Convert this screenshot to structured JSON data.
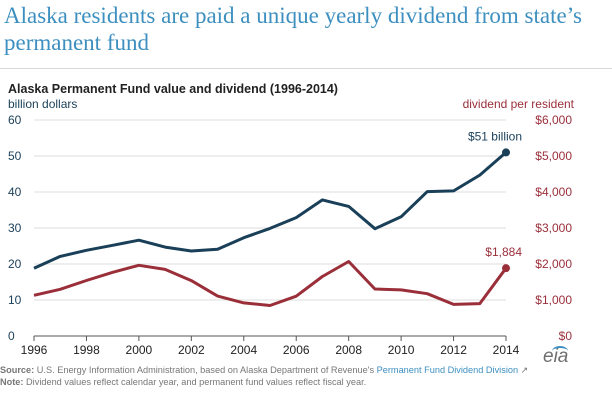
{
  "headline": "Alaska residents are paid a unique yearly dividend from state’s permanent fund",
  "chart_data": {
    "type": "line",
    "title": "Alaska Permanent Fund value and dividend (1996-2014)",
    "ylabel_left": "billion dollars",
    "ylabel_right": "dividend  per resident",
    "x": [
      1996,
      1997,
      1998,
      1999,
      2000,
      2001,
      2002,
      2003,
      2004,
      2005,
      2006,
      2007,
      2008,
      2009,
      2010,
      2011,
      2012,
      2013,
      2014
    ],
    "xlim": [
      1996,
      2014
    ],
    "xticks": [
      "1996",
      "1998",
      "2000",
      "2002",
      "2004",
      "2006",
      "2008",
      "2010",
      "2012",
      "2014"
    ],
    "ylim_left": [
      0,
      60
    ],
    "yticks_left": [
      "0",
      "10",
      "20",
      "30",
      "40",
      "50",
      "60"
    ],
    "ylim_right": [
      0,
      6000
    ],
    "yticks_right": [
      "$0",
      "$1,000",
      "$2,000",
      "$3,000",
      "$4,000",
      "$5,000",
      "$6,000"
    ],
    "grid": true,
    "series": [
      {
        "axis": "left",
        "color": "#1a3f58",
        "values": [
          18.8,
          22.1,
          23.8,
          25.2,
          26.6,
          24.7,
          23.6,
          24.1,
          27.3,
          29.9,
          32.9,
          37.8,
          36.0,
          29.8,
          33.1,
          40.1,
          40.3,
          44.7,
          51.0
        ],
        "end_label": "$51 billion"
      },
      {
        "axis": "right",
        "color": "#9a2f3a",
        "values": [
          1130,
          1296,
          1541,
          1770,
          1964,
          1850,
          1540,
          1107,
          920,
          846,
          1106,
          1654,
          2069,
          1305,
          1281,
          1174,
          878,
          900,
          1884
        ],
        "end_label": "$1,884"
      }
    ]
  },
  "source": {
    "label": "Source:",
    "text": "U.S. Energy Information Administration, based on Alaska Department of Revenue's",
    "link": "Permanent Fund Dividend Division",
    "note_label": "Note:",
    "note": "Dividend values reflect calendar year, and permanent fund values reflect fiscal year."
  },
  "logo_text": "eia",
  "colors": {
    "headline": "#3d8fc0",
    "fund_line": "#1a3f58",
    "dividend_line": "#9a2f3a",
    "grid": "#dddddd"
  }
}
